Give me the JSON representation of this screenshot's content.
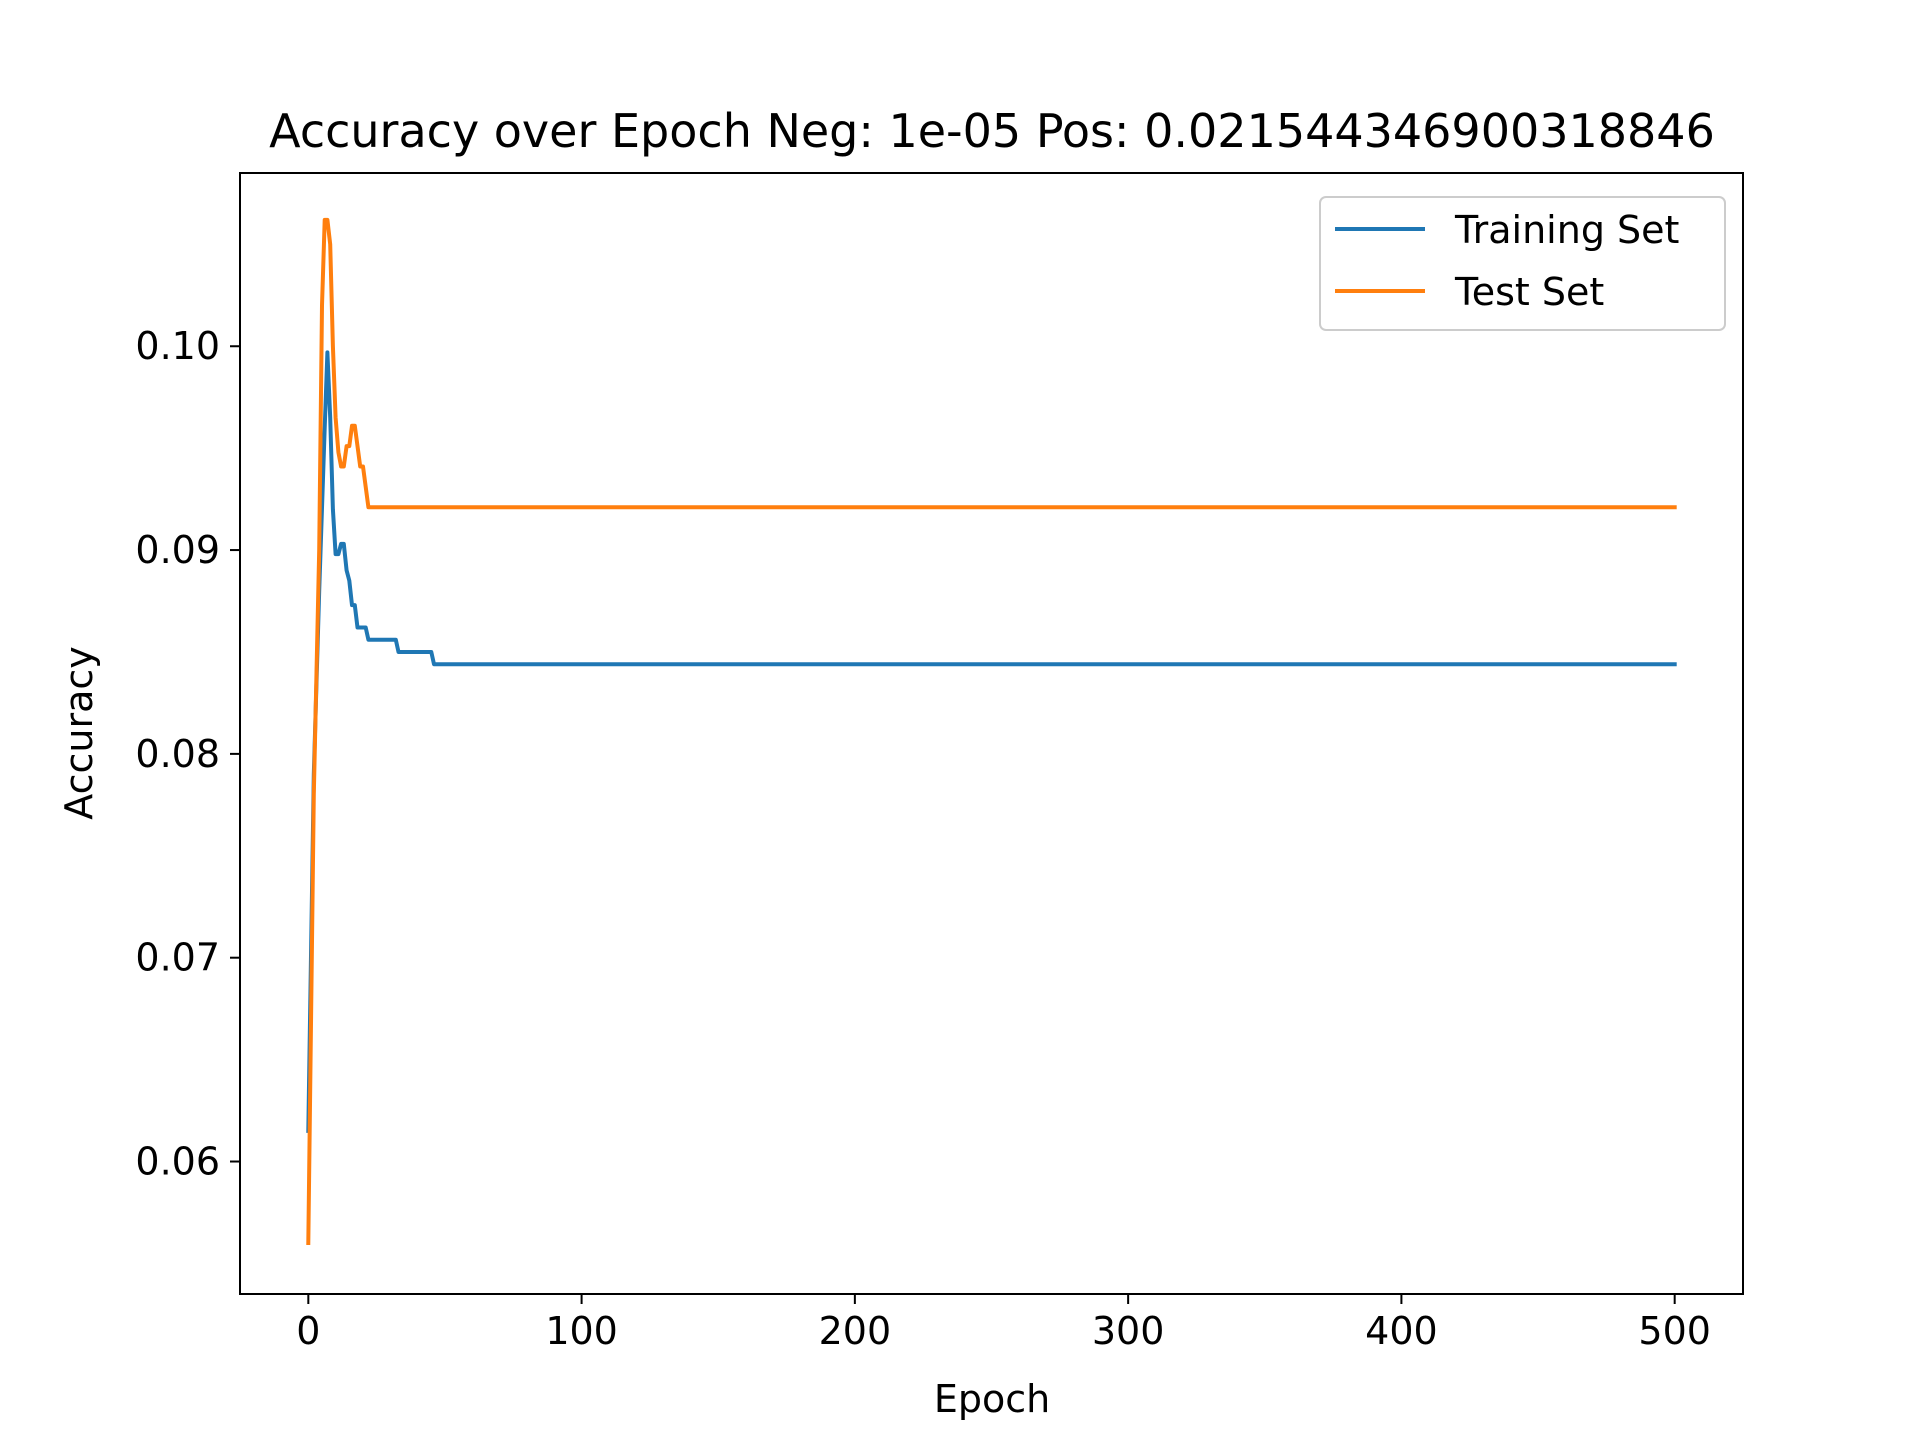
{
  "chart_data": {
    "type": "line",
    "title": "Accuracy over Epoch Neg: 1e-05 Pos: 0.021544346900318846",
    "xlabel": "Epoch",
    "ylabel": "Accuracy",
    "xlim": [
      -25,
      525
    ],
    "ylim": [
      0.0535,
      0.1085
    ],
    "xticks": [
      0,
      100,
      200,
      300,
      400,
      500
    ],
    "xtick_labels": [
      "0",
      "100",
      "200",
      "300",
      "400",
      "500"
    ],
    "yticks": [
      0.06,
      0.07,
      0.08,
      0.09,
      0.1
    ],
    "ytick_labels": [
      "0.06",
      "0.07",
      "0.08",
      "0.09",
      "0.10"
    ],
    "grid": false,
    "legend_position": "top-right",
    "series": [
      {
        "name": "Training Set",
        "color": "#1f77b4",
        "points": [
          [
            0,
            0.0615
          ],
          [
            2,
            0.079
          ],
          [
            4,
            0.088
          ],
          [
            6,
            0.096
          ],
          [
            7,
            0.0997
          ],
          [
            8,
            0.0965
          ],
          [
            9,
            0.092
          ],
          [
            10,
            0.0898
          ],
          [
            11,
            0.0898
          ],
          [
            12,
            0.0903
          ],
          [
            13,
            0.0903
          ],
          [
            14,
            0.089
          ],
          [
            15,
            0.0885
          ],
          [
            16,
            0.0873
          ],
          [
            17,
            0.0873
          ],
          [
            18,
            0.0862
          ],
          [
            19,
            0.0862
          ],
          [
            20,
            0.0862
          ],
          [
            21,
            0.0862
          ],
          [
            22,
            0.0856
          ],
          [
            32,
            0.0856
          ],
          [
            33,
            0.085
          ],
          [
            45,
            0.085
          ],
          [
            46,
            0.0844
          ],
          [
            500,
            0.0844
          ]
        ]
      },
      {
        "name": "Test Set",
        "color": "#ff7f0e",
        "points": [
          [
            0,
            0.056
          ],
          [
            2,
            0.078
          ],
          [
            4,
            0.09
          ],
          [
            5,
            0.102
          ],
          [
            6,
            0.1062
          ],
          [
            7,
            0.1062
          ],
          [
            8,
            0.105
          ],
          [
            9,
            0.1
          ],
          [
            10,
            0.0965
          ],
          [
            11,
            0.0948
          ],
          [
            12,
            0.0941
          ],
          [
            13,
            0.0941
          ],
          [
            14,
            0.0951
          ],
          [
            15,
            0.0951
          ],
          [
            16,
            0.0961
          ],
          [
            17,
            0.0961
          ],
          [
            18,
            0.0951
          ],
          [
            19,
            0.0941
          ],
          [
            20,
            0.0941
          ],
          [
            21,
            0.0931
          ],
          [
            22,
            0.0921
          ],
          [
            500,
            0.0921
          ]
        ]
      }
    ]
  }
}
